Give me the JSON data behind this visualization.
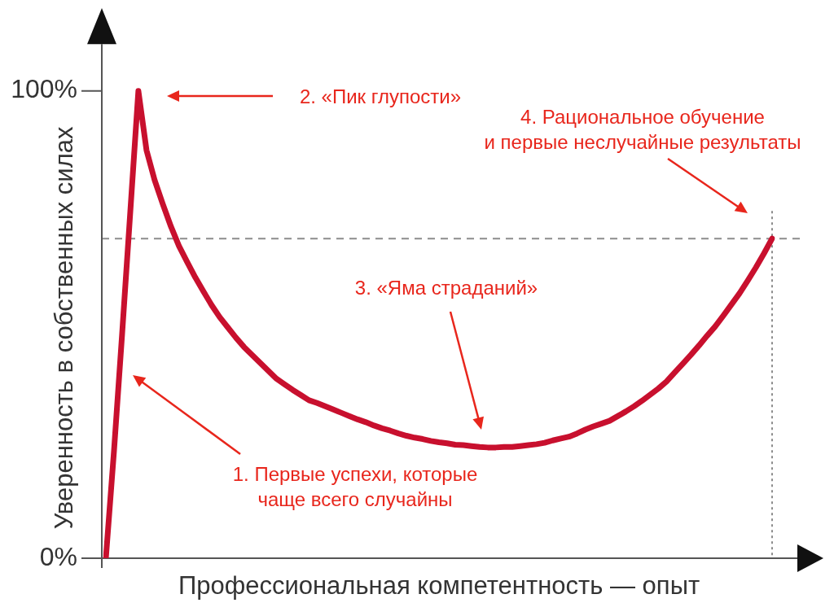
{
  "chart_data": {
    "type": "line",
    "xlabel": "Профессиональная компетентность — опыт",
    "ylabel": "Уверенность в собственных силах",
    "categories": [
      null,
      null,
      null,
      null,
      null,
      null,
      null,
      null,
      null,
      null,
      null,
      null,
      null,
      null,
      null,
      null,
      null,
      null,
      null,
      null,
      null,
      null,
      null,
      null,
      null,
      null,
      null,
      null,
      null,
      null,
      null,
      null,
      null,
      null,
      null,
      null,
      null,
      null,
      null,
      null,
      null,
      null,
      null,
      null,
      null,
      null,
      null,
      null,
      null,
      null,
      null,
      null,
      null,
      null,
      null,
      null,
      null,
      null,
      null,
      null,
      null,
      null,
      null,
      null,
      null,
      null,
      null,
      null,
      null,
      null,
      null,
      null,
      null,
      null,
      null,
      null,
      null,
      null,
      null,
      null,
      null,
      null,
      null
    ],
    "series": [
      {
        "color": "#c8102e",
        "values": [
          0,
          23,
          48,
          74,
          100,
          87.3,
          80.9,
          75.8,
          71.0,
          66.8,
          63.4,
          60.1,
          57.1,
          54.2,
          51.6,
          49.4,
          47.2,
          45.2,
          43.5,
          41.8,
          40.1,
          38.4,
          37.2,
          36.0,
          34.9,
          33.8,
          33.2,
          32.5,
          31.8,
          31.1,
          30.4,
          29.7,
          29.1,
          28.4,
          27.8,
          27.3,
          26.7,
          26.2,
          25.8,
          25.5,
          25.1,
          24.8,
          24.6,
          24.3,
          24.2,
          24.0,
          23.8,
          23.7,
          23.7,
          23.8,
          23.8,
          24.0,
          24.2,
          24.4,
          24.7,
          25.2,
          25.6,
          26.0,
          26.7,
          27.5,
          28.2,
          28.8,
          29.4,
          30.4,
          31.4,
          32.5,
          33.7,
          35.0,
          36.3,
          37.8,
          39.7,
          41.6,
          43.5,
          45.5,
          47.6,
          49.6,
          51.9,
          54.3,
          56.7,
          59.4,
          62.2,
          65.2,
          68.4
        ]
      }
    ],
    "ylim": [
      0,
      110
    ],
    "yticks": [
      {
        "value": 0,
        "label": "0%"
      },
      {
        "value": 100,
        "label": "100%"
      }
    ],
    "ref_lines": [
      {
        "axis": "y",
        "value": 68.4,
        "line_style": "dashed",
        "color": "#8c8c8c"
      }
    ],
    "annotations": [
      "1. Первые успехи, которые\nчаще всего случайны",
      "2. «Пик глупости»",
      "3. «Яма страданий»",
      "4. Рациональное обучение\nи первые неслучайные результаты"
    ],
    "marker": "none",
    "line_style": "solid"
  }
}
